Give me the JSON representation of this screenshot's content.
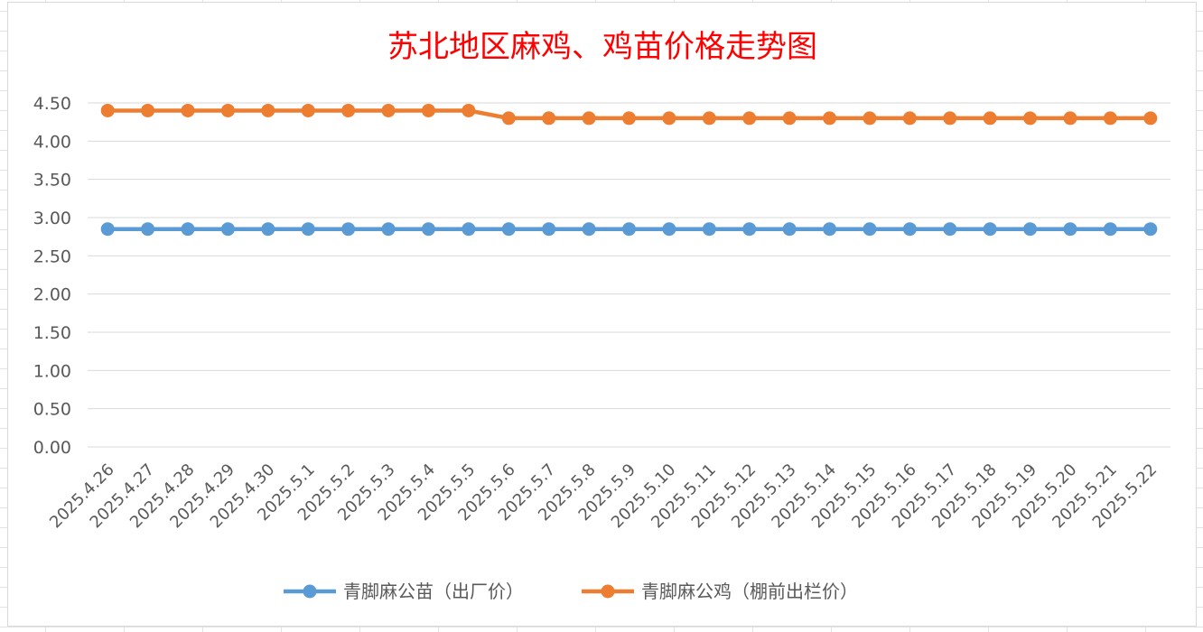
{
  "chart_data": {
    "type": "line",
    "title": "苏北地区麻鸡、鸡苗价格走势图",
    "categories": [
      "2025.4.26",
      "2025.4.27",
      "2025.4.28",
      "2025.4.29",
      "2025.4.30",
      "2025.5.1",
      "2025.5.2",
      "2025.5.3",
      "2025.5.4",
      "2025.5.5",
      "2025.5.6",
      "2025.5.7",
      "2025.5.8",
      "2025.5.9",
      "2025.5.10",
      "2025.5.11",
      "2025.5.12",
      "2025.5.13",
      "2025.5.14",
      "2025.5.15",
      "2025.5.16",
      "2025.5.17",
      "2025.5.18",
      "2025.5.19",
      "2025.5.20",
      "2025.5.21",
      "2025.5.22"
    ],
    "ylim": [
      0,
      4.5
    ],
    "yticks": [
      "0.00",
      "0.50",
      "1.00",
      "1.50",
      "2.00",
      "2.50",
      "3.00",
      "3.50",
      "4.00",
      "4.50"
    ],
    "grid": true,
    "legend_position": "bottom",
    "series": [
      {
        "name": "青脚麻公苗（出厂价）",
        "color": "#5b9bd5",
        "values": [
          2.85,
          2.85,
          2.85,
          2.85,
          2.85,
          2.85,
          2.85,
          2.85,
          2.85,
          2.85,
          2.85,
          2.85,
          2.85,
          2.85,
          2.85,
          2.85,
          2.85,
          2.85,
          2.85,
          2.85,
          2.85,
          2.85,
          2.85,
          2.85,
          2.85,
          2.85,
          2.85
        ]
      },
      {
        "name": "青脚麻公鸡（棚前出栏价）",
        "color": "#ed7d31",
        "values": [
          4.4,
          4.4,
          4.4,
          4.4,
          4.4,
          4.4,
          4.4,
          4.4,
          4.4,
          4.4,
          4.3,
          4.3,
          4.3,
          4.3,
          4.3,
          4.3,
          4.3,
          4.3,
          4.3,
          4.3,
          4.3,
          4.3,
          4.3,
          4.3,
          4.3,
          4.3,
          4.3
        ]
      }
    ]
  }
}
